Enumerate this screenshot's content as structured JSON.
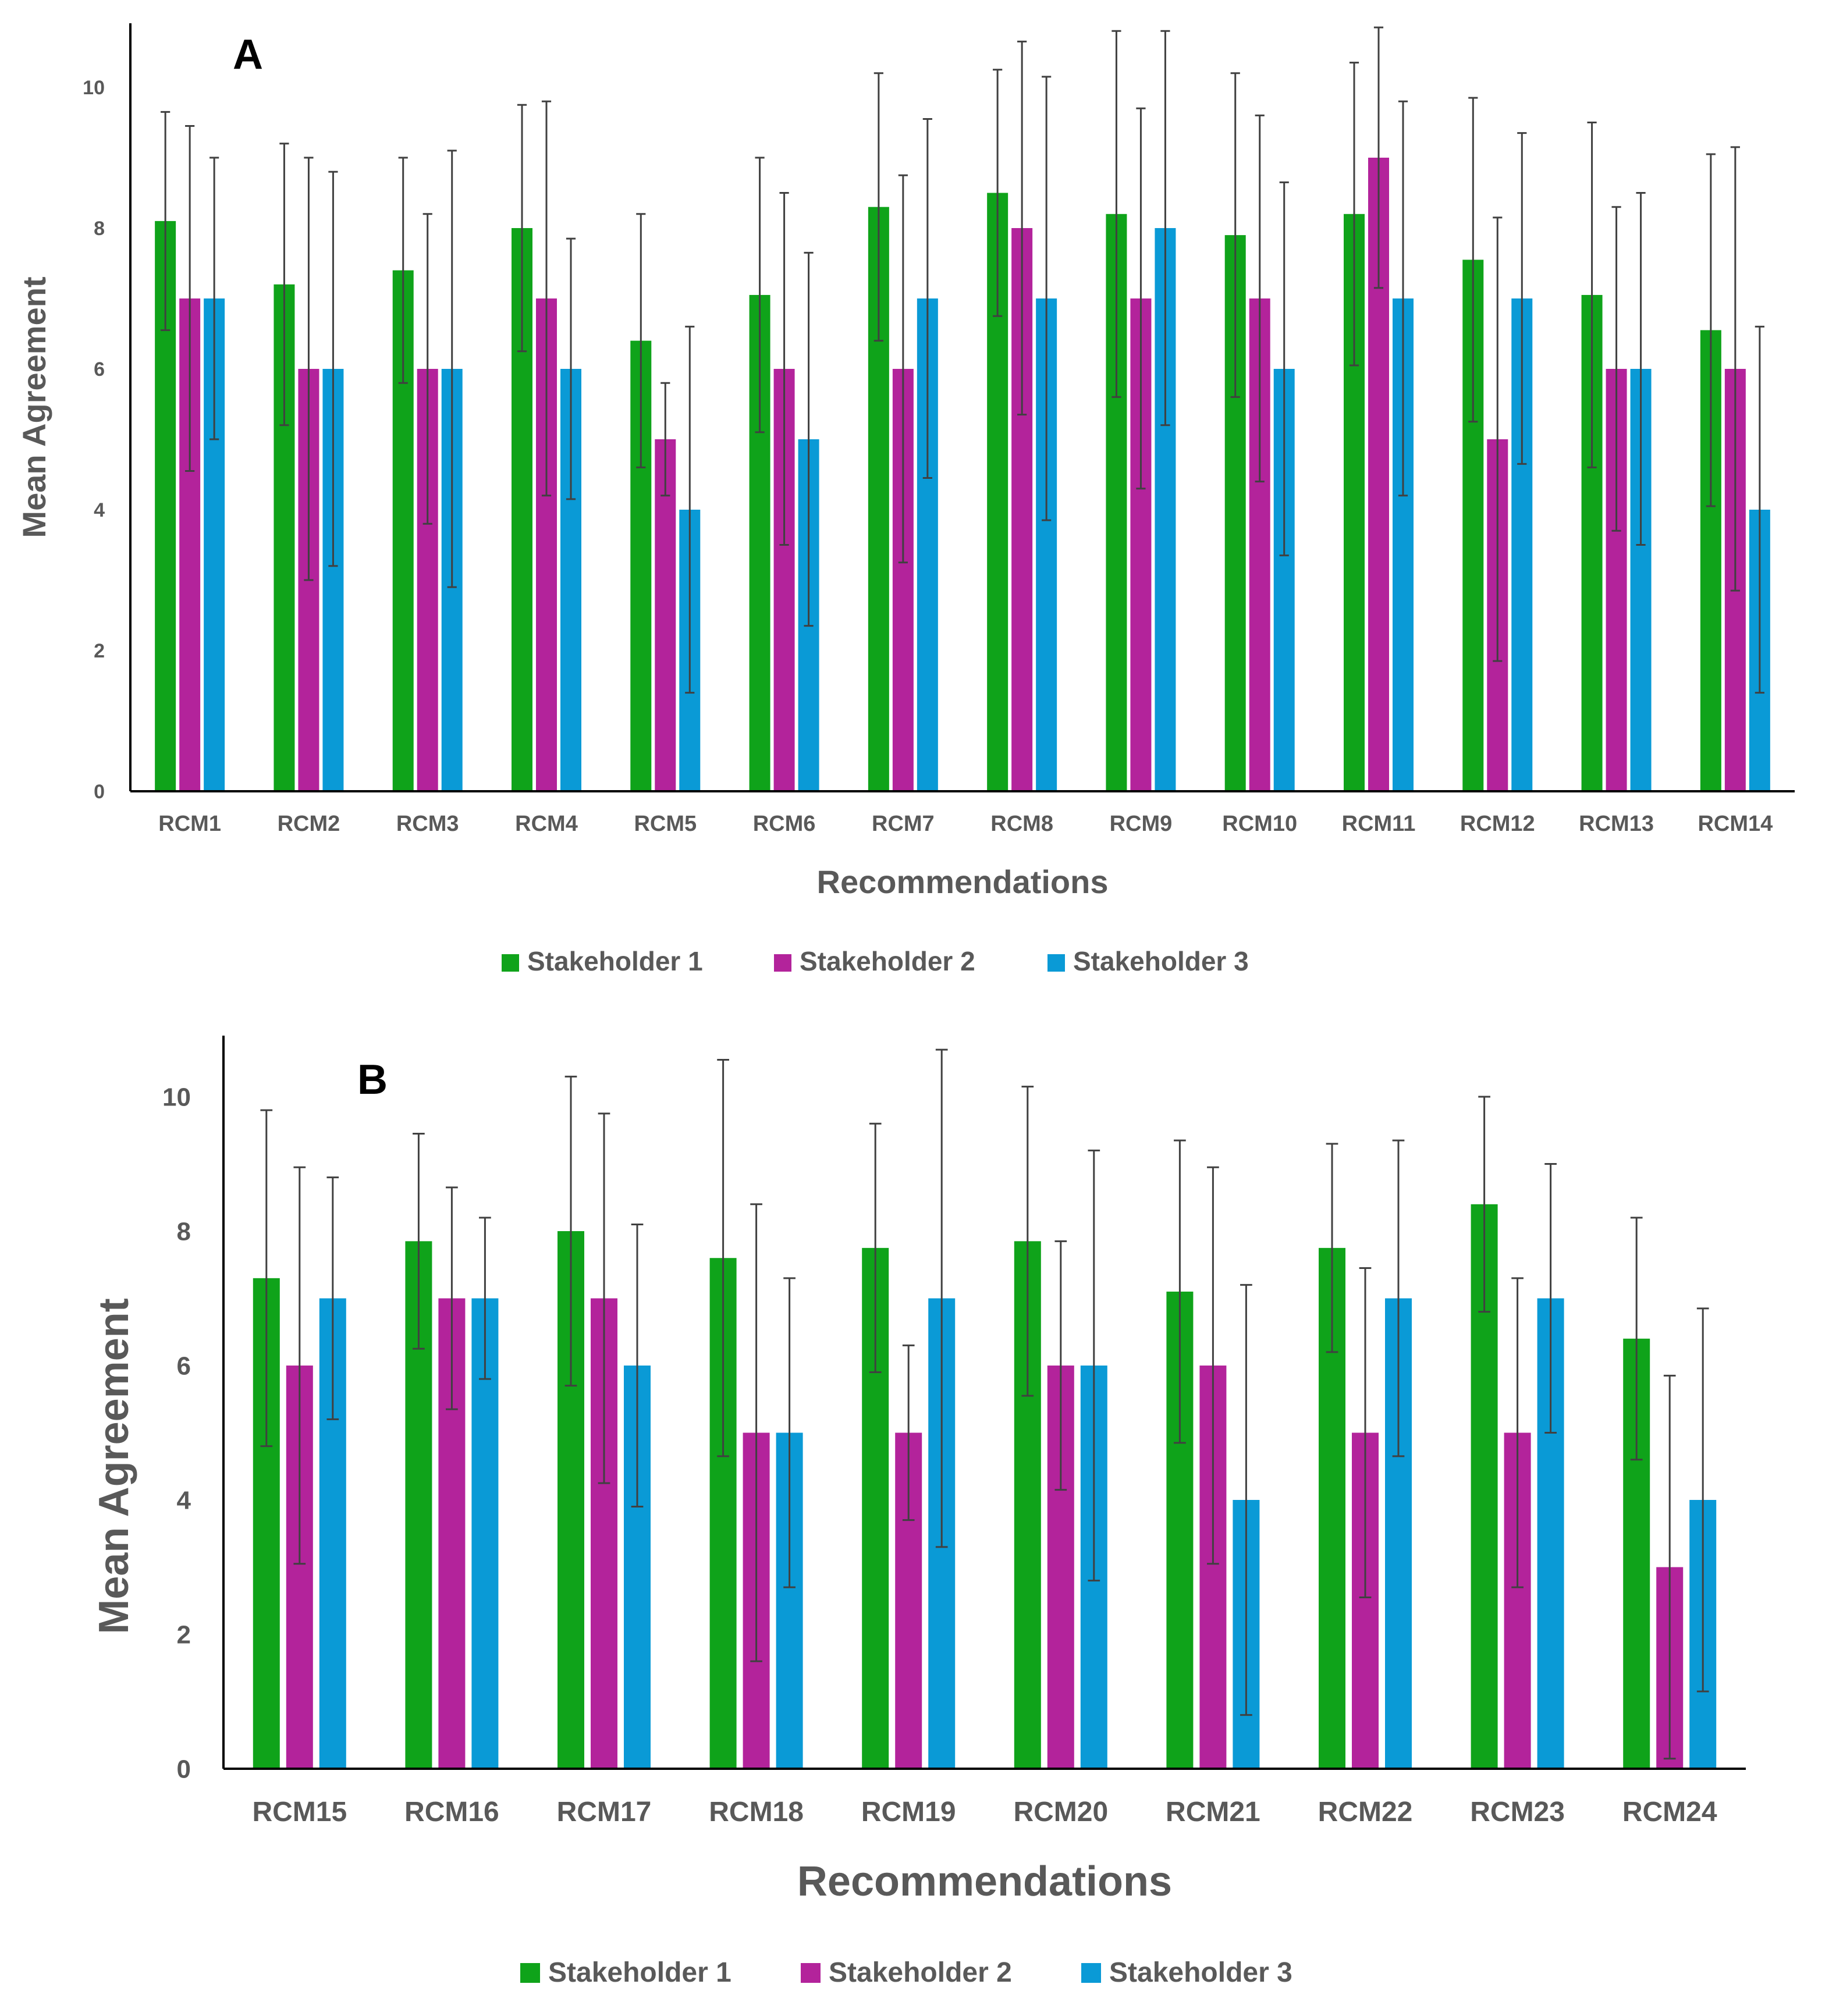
{
  "colors": {
    "stakeholder_1": "#0fa31a",
    "stakeholder_2": "#b3239b",
    "stakeholder_3": "#0a9ad6",
    "axis": "#000000",
    "error_bar": "#404040",
    "text": "#595959"
  },
  "chart_data": [
    {
      "type": "bar",
      "panel_label": "A",
      "title": "",
      "xlabel": "Recommendations",
      "ylabel": "Mean Agreement",
      "ylim": [
        0,
        11
      ],
      "yticks": [
        0,
        2,
        4,
        6,
        8,
        10
      ],
      "legend_position": "bottom-center",
      "categories": [
        "RCM1",
        "RCM2",
        "RCM3",
        "RCM4",
        "RCM5",
        "RCM6",
        "RCM7",
        "RCM8",
        "RCM9",
        "RCM10",
        "RCM11",
        "RCM12",
        "RCM13",
        "RCM14"
      ],
      "series": [
        {
          "name": "Stakeholder 1",
          "values": [
            8.1,
            7.2,
            7.4,
            8.0,
            6.4,
            7.05,
            8.3,
            8.5,
            8.2,
            7.9,
            8.2,
            7.55,
            7.05,
            6.55
          ],
          "error": [
            1.55,
            2.0,
            1.6,
            1.75,
            1.8,
            1.95,
            1.9,
            1.75,
            2.6,
            2.3,
            2.15,
            2.3,
            2.45,
            2.5
          ]
        },
        {
          "name": "Stakeholder 2",
          "values": [
            7,
            6,
            6,
            7,
            5,
            6,
            6,
            8,
            7,
            7,
            9,
            5,
            6,
            6
          ],
          "error": [
            2.45,
            3.0,
            2.2,
            2.8,
            0.8,
            2.5,
            2.75,
            2.65,
            2.7,
            2.6,
            1.85,
            3.15,
            2.3,
            3.15
          ]
        },
        {
          "name": "Stakeholder 3",
          "values": [
            7,
            6,
            6,
            6,
            4,
            5,
            7,
            7,
            8,
            6,
            7,
            7,
            6,
            4
          ],
          "error": [
            2.0,
            2.8,
            3.1,
            1.85,
            2.6,
            2.65,
            2.55,
            3.15,
            2.8,
            2.65,
            2.8,
            2.35,
            2.5,
            2.6
          ]
        }
      ]
    },
    {
      "type": "bar",
      "panel_label": "B",
      "title": "",
      "xlabel": "Recommendations",
      "ylabel": "Mean Agreement",
      "ylim": [
        0,
        11
      ],
      "yticks": [
        0,
        2,
        4,
        6,
        8,
        10
      ],
      "legend_position": "bottom-center",
      "categories": [
        "RCM15",
        "RCM16",
        "RCM17",
        "RCM18",
        "RCM19",
        "RCM20",
        "RCM21",
        "RCM22",
        "RCM23",
        "RCM24"
      ],
      "series": [
        {
          "name": "Stakeholder 1",
          "values": [
            7.3,
            7.85,
            8.0,
            7.6,
            7.75,
            7.85,
            7.1,
            7.75,
            8.4,
            6.4
          ],
          "error": [
            2.5,
            1.6,
            2.3,
            2.95,
            1.85,
            2.3,
            2.25,
            1.55,
            1.6,
            1.8
          ]
        },
        {
          "name": "Stakeholder 2",
          "values": [
            6,
            7,
            7,
            5,
            5,
            6,
            6,
            5,
            5,
            3
          ],
          "error": [
            2.95,
            1.65,
            2.75,
            3.4,
            1.3,
            1.85,
            2.95,
            2.45,
            2.3,
            2.85
          ]
        },
        {
          "name": "Stakeholder 3",
          "values": [
            7,
            7,
            6,
            5,
            7,
            6,
            4,
            7,
            7,
            4
          ],
          "error": [
            1.8,
            1.2,
            2.1,
            2.3,
            3.7,
            3.2,
            3.2,
            2.35,
            2.0,
            2.85
          ]
        }
      ]
    }
  ]
}
